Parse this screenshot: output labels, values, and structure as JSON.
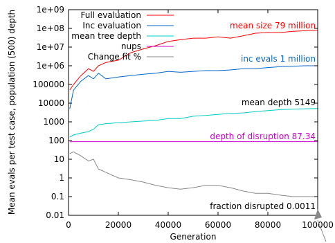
{
  "chart_data": {
    "type": "line",
    "xlabel": "Generation",
    "ylabel": "Mean evals per test case, population (500) depth",
    "xlim": [
      0,
      100000
    ],
    "ylim": [
      0.01,
      1000000000
    ],
    "yscale": "log",
    "x_ticks": [
      0,
      20000,
      40000,
      60000,
      80000,
      100000
    ],
    "x_tick_labels": [
      "0",
      "20000",
      "40000",
      "60000",
      "80000",
      "100000"
    ],
    "y_ticks": [
      0.01,
      0.1,
      1,
      10,
      100,
      1000,
      10000,
      100000,
      1000000,
      10000000,
      100000000,
      1000000000
    ],
    "y_tick_labels": [
      "0.01",
      "0.1",
      "1",
      "10",
      "100",
      "1000",
      "10000",
      "100000",
      "1e+06",
      "1e+07",
      "1e+08",
      "1e+09"
    ],
    "grid": false,
    "legend_position": "top-left",
    "series": [
      {
        "name": "Full evaluation",
        "color": "#ff0000",
        "x": [
          500,
          2000,
          5000,
          8000,
          10000,
          12000,
          15000,
          20000,
          25000,
          30000,
          35000,
          40000,
          45000,
          50000,
          55000,
          60000,
          65000,
          70000,
          75000,
          80000,
          85000,
          90000,
          95000,
          100000
        ],
        "y": [
          50000,
          100000,
          300000,
          700000,
          500000,
          1000000,
          1500000,
          2000000,
          5000000,
          8000000,
          12000000,
          20000000,
          25000000,
          30000000,
          30000000,
          35000000,
          30000000,
          40000000,
          55000000,
          60000000,
          60000000,
          70000000,
          75000000,
          80000000
        ]
      },
      {
        "name": "Inc evaluation",
        "color": "#0066cc",
        "x": [
          500,
          2000,
          5000,
          8000,
          10000,
          12000,
          15000,
          20000,
          25000,
          30000,
          35000,
          40000,
          45000,
          50000,
          55000,
          60000,
          65000,
          70000,
          75000,
          80000,
          85000,
          90000,
          95000,
          100000
        ],
        "y": [
          5000,
          50000,
          150000,
          300000,
          200000,
          400000,
          200000,
          250000,
          300000,
          350000,
          400000,
          500000,
          450000,
          500000,
          550000,
          550000,
          600000,
          700000,
          700000,
          800000,
          900000,
          950000,
          1000000,
          1000000
        ]
      },
      {
        "name": "mean tree depth",
        "color": "#00cccc",
        "x": [
          500,
          2000,
          5000,
          8000,
          10000,
          12000,
          15000,
          20000,
          25000,
          30000,
          35000,
          40000,
          45000,
          50000,
          55000,
          60000,
          65000,
          70000,
          75000,
          80000,
          85000,
          90000,
          95000,
          100000
        ],
        "y": [
          150,
          200,
          250,
          300,
          400,
          700,
          800,
          900,
          1000,
          1100,
          1200,
          1500,
          1500,
          2000,
          2200,
          2500,
          2800,
          3000,
          3500,
          4000,
          4500,
          4800,
          5000,
          5149
        ]
      },
      {
        "name": "nups",
        "color": "#cc00cc",
        "x": [
          500,
          2000,
          10000,
          20000,
          40000,
          60000,
          80000,
          100000
        ],
        "y": [
          85,
          87,
          87,
          87,
          87,
          87.3,
          87.3,
          87.34
        ]
      },
      {
        "name": "Change fit %",
        "color": "#888888",
        "x": [
          500,
          2000,
          5000,
          8000,
          10000,
          12000,
          15000,
          20000,
          25000,
          30000,
          35000,
          40000,
          45000,
          50000,
          55000,
          60000,
          65000,
          70000,
          75000,
          80000,
          85000,
          90000,
          95000,
          100000
        ],
        "y": [
          20,
          25,
          15,
          8,
          10,
          3,
          2,
          1,
          0.8,
          0.6,
          0.4,
          0.3,
          0.25,
          0.3,
          0.4,
          0.4,
          0.3,
          0.2,
          0.15,
          0.15,
          0.12,
          0.1,
          0.1,
          0.1
        ]
      }
    ],
    "annotations": [
      {
        "text": "mean size 79 million",
        "color": "#ff0000"
      },
      {
        "text": "inc evals  1 million",
        "color": "#0066cc"
      },
      {
        "text": "mean depth 5149",
        "color": "#000000"
      },
      {
        "text": "depth of disruption 87.34",
        "color": "#cc00cc"
      },
      {
        "text": "fraction disrupted 0.0011",
        "color": "#000000"
      }
    ]
  }
}
